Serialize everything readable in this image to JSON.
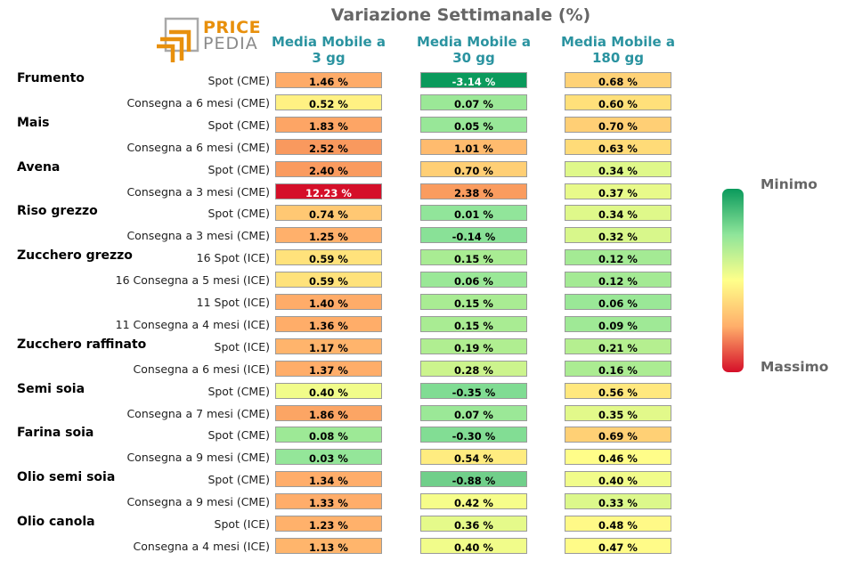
{
  "chart_data": {
    "type": "heatmap",
    "title": "Variazione Settimanale (%)",
    "columns": [
      "Media Mobile a\n3 gg",
      "Media Mobile a\n30 gg",
      "Media Mobile a\n180 gg"
    ],
    "colorbar": {
      "min_label": "Minimo",
      "max_label": "Massimo",
      "colors": [
        "#0a9a5c",
        "#8fe59a",
        "#ffff8a",
        "#ffae6a",
        "#d50f29"
      ]
    },
    "rows": [
      {
        "group": "Frumento",
        "label": "Spot (CME)",
        "values": [
          1.46,
          -3.14,
          0.68
        ],
        "display": [
          "1.46 %",
          "-3.14 %",
          "0.68 %"
        ]
      },
      {
        "group": "",
        "label": "Consegna a 6 mesi (CME)",
        "values": [
          0.52,
          0.07,
          0.6
        ],
        "display": [
          "0.52 %",
          "0.07 %",
          "0.60 %"
        ]
      },
      {
        "group": "Mais",
        "label": "Spot (CME)",
        "values": [
          1.83,
          0.05,
          0.7
        ],
        "display": [
          "1.83 %",
          "0.05 %",
          "0.70 %"
        ]
      },
      {
        "group": "",
        "label": "Consegna a 6 mesi (CME)",
        "values": [
          2.52,
          1.01,
          0.63
        ],
        "display": [
          "2.52 %",
          "1.01 %",
          "0.63 %"
        ]
      },
      {
        "group": "Avena",
        "label": "Spot (CME)",
        "values": [
          2.4,
          0.7,
          0.34
        ],
        "display": [
          "2.40 %",
          "0.70 %",
          "0.34 %"
        ]
      },
      {
        "group": "",
        "label": "Consegna a 3 mesi (CME)",
        "values": [
          12.23,
          2.38,
          0.37
        ],
        "display": [
          "12.23 %",
          "2.38 %",
          "0.37 %"
        ]
      },
      {
        "group": "Riso grezzo",
        "label": "Spot (CME)",
        "values": [
          0.74,
          0.01,
          0.34
        ],
        "display": [
          "0.74 %",
          "0.01 %",
          "0.34 %"
        ]
      },
      {
        "group": "",
        "label": "Consegna a 3 mesi (CME)",
        "values": [
          1.25,
          -0.14,
          0.32
        ],
        "display": [
          "1.25 %",
          "-0.14 %",
          "0.32 %"
        ]
      },
      {
        "group": "Zucchero grezzo",
        "label": "16 Spot (ICE)",
        "values": [
          0.59,
          0.15,
          0.12
        ],
        "display": [
          "0.59 %",
          "0.15 %",
          "0.12 %"
        ]
      },
      {
        "group": "",
        "label": "16 Consegna a 5 mesi (ICE)",
        "values": [
          0.59,
          0.06,
          0.12
        ],
        "display": [
          "0.59 %",
          "0.06 %",
          "0.12 %"
        ]
      },
      {
        "group": "",
        "label": "11 Spot (ICE)",
        "values": [
          1.4,
          0.15,
          0.06
        ],
        "display": [
          "1.40 %",
          "0.15 %",
          "0.06 %"
        ]
      },
      {
        "group": "",
        "label": "11 Consegna a 4 mesi (ICE)",
        "values": [
          1.36,
          0.15,
          0.09
        ],
        "display": [
          "1.36 %",
          "0.15 %",
          "0.09 %"
        ]
      },
      {
        "group": "Zucchero raffinato",
        "label": "Spot (ICE)",
        "values": [
          1.17,
          0.19,
          0.21
        ],
        "display": [
          "1.17 %",
          "0.19 %",
          "0.21 %"
        ]
      },
      {
        "group": "",
        "label": "Consegna a 6 mesi (ICE)",
        "values": [
          1.37,
          0.28,
          0.16
        ],
        "display": [
          "1.37 %",
          "0.28 %",
          "0.16 %"
        ]
      },
      {
        "group": "Semi soia",
        "label": "Spot (CME)",
        "values": [
          0.4,
          -0.35,
          0.56
        ],
        "display": [
          "0.40 %",
          "-0.35 %",
          "0.56 %"
        ]
      },
      {
        "group": "",
        "label": "Consegna a 7 mesi (CME)",
        "values": [
          1.86,
          0.07,
          0.35
        ],
        "display": [
          "1.86 %",
          "0.07 %",
          "0.35 %"
        ]
      },
      {
        "group": "Farina soia",
        "label": "Spot (CME)",
        "values": [
          0.08,
          -0.3,
          0.69
        ],
        "display": [
          "0.08 %",
          "-0.30 %",
          "0.69 %"
        ]
      },
      {
        "group": "",
        "label": "Consegna a 9 mesi (CME)",
        "values": [
          0.03,
          0.54,
          0.46
        ],
        "display": [
          "0.03 %",
          "0.54 %",
          "0.46 %"
        ]
      },
      {
        "group": "Olio semi soia",
        "label": "Spot (CME)",
        "values": [
          1.34,
          -0.88,
          0.4
        ],
        "display": [
          "1.34 %",
          "-0.88 %",
          "0.40 %"
        ]
      },
      {
        "group": "",
        "label": "Consegna a 9 mesi (CME)",
        "values": [
          1.33,
          0.42,
          0.33
        ],
        "display": [
          "1.33 %",
          "0.42 %",
          "0.33 %"
        ]
      },
      {
        "group": "Olio canola",
        "label": "Spot (ICE)",
        "values": [
          1.23,
          0.36,
          0.48
        ],
        "display": [
          "1.23 %",
          "0.36 %",
          "0.48 %"
        ]
      },
      {
        "group": "",
        "label": "Consegna a 4 mesi (ICE)",
        "values": [
          1.13,
          0.4,
          0.47
        ],
        "display": [
          "1.13 %",
          "0.40 %",
          "0.47 %"
        ]
      }
    ]
  },
  "logo": {
    "word1": "PRICE",
    "word2": "PEDIA",
    "accent": "#e8900c"
  }
}
